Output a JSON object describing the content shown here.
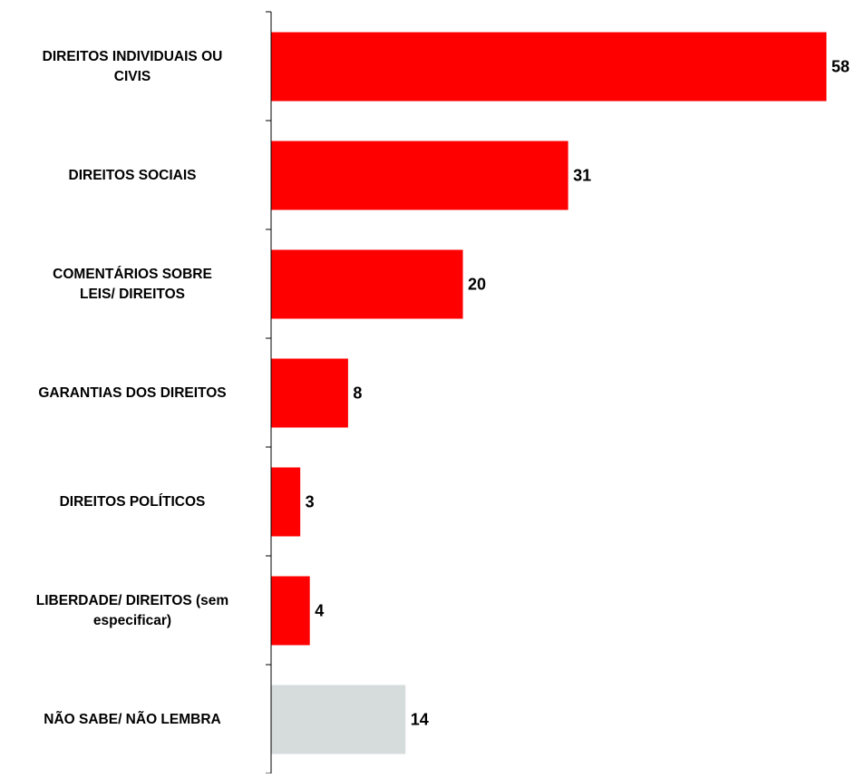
{
  "chart_data": {
    "type": "bar",
    "orientation": "horizontal",
    "title": "",
    "xlabel": "",
    "ylabel": "",
    "xlim": [
      0,
      58
    ],
    "grid": false,
    "legend": "none",
    "categories": [
      "DIREITOS INDIVIDUAIS OU CIVIS",
      "DIREITOS SOCIAIS",
      "COMENTÁRIOS SOBRE LEIS/ DIREITOS",
      "GARANTIAS DOS DIREITOS",
      "DIREITOS POLÍTICOS",
      "LIBERDADE/ DIREITOS (sem especificar)",
      "NÃO SABE/ NÃO LEMBRA"
    ],
    "category_lines": [
      [
        "DIREITOS INDIVIDUAIS OU",
        "CIVIS"
      ],
      [
        "DIREITOS SOCIAIS"
      ],
      [
        "COMENTÁRIOS SOBRE",
        "LEIS/ DIREITOS"
      ],
      [
        "GARANTIAS DOS DIREITOS"
      ],
      [
        "DIREITOS POLÍTICOS"
      ],
      [
        "LIBERDADE/ DIREITOS (sem",
        "especificar)"
      ],
      [
        "NÃO SABE/ NÃO LEMBRA"
      ]
    ],
    "values": [
      58,
      31,
      20,
      8,
      3,
      4,
      14
    ],
    "colors": [
      "#ff0000",
      "#ff0000",
      "#ff0000",
      "#ff0000",
      "#ff0000",
      "#ff0000",
      "#d6dbdc"
    ]
  }
}
